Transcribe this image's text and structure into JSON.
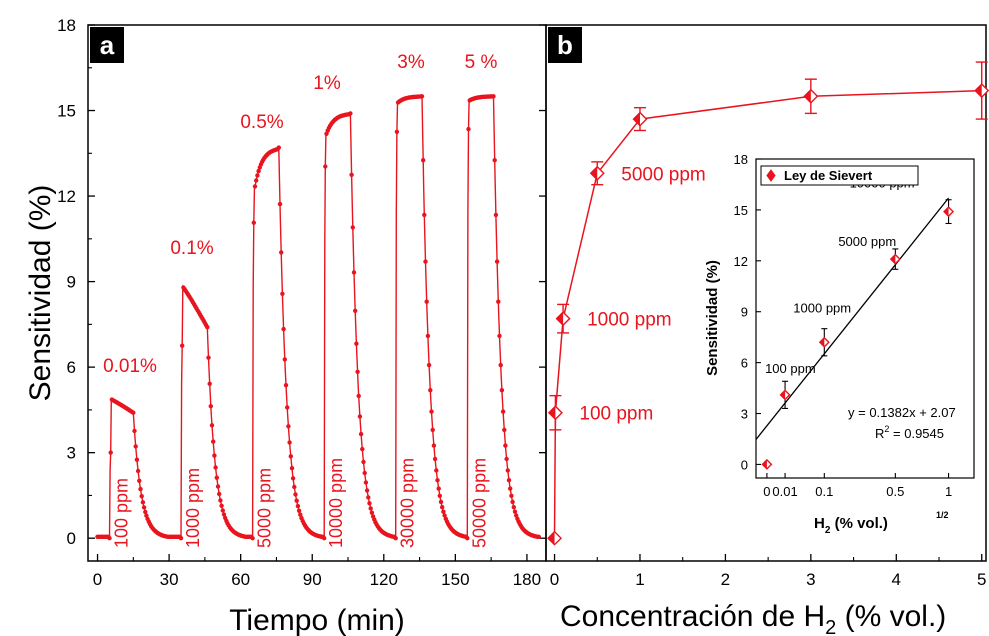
{
  "chart_data": [
    {
      "panel": "a",
      "type": "line",
      "xlabel": "Tiempo (min)",
      "ylabel": "Sensitividad (%)",
      "xlim": [
        -4,
        188
      ],
      "ylim": [
        -0.8,
        18
      ],
      "x_ticks": [
        0,
        30,
        60,
        90,
        120,
        150,
        180
      ],
      "y_ticks": [
        0,
        3,
        6,
        9,
        12,
        15,
        18
      ],
      "color": "#e8141e",
      "pulses": [
        {
          "on": 5,
          "off": 15,
          "peak": 4.9,
          "end": 4.4,
          "rise": 3.2,
          "step_label": "0.01%",
          "conc_label": "100 ppm"
        },
        {
          "on": 35,
          "off": 46,
          "peak": 8.9,
          "end": 7.4,
          "rise": 7.2,
          "step_label": "0.1%",
          "conc_label": "1000 ppm"
        },
        {
          "on": 65,
          "off": 76,
          "peak": 11.8,
          "end": 13.7,
          "rise": 11.8,
          "step_label": "0.5%",
          "conc_label": "5000 ppm"
        },
        {
          "on": 95,
          "off": 106,
          "peak": 13.9,
          "end": 14.9,
          "rise": 13.9,
          "step_label": "1%",
          "conc_label": "10000 ppm"
        },
        {
          "on": 125,
          "off": 136,
          "peak": 15.2,
          "end": 15.5,
          "rise": 15.2,
          "step_label": "3%",
          "conc_label": "30000 ppm"
        },
        {
          "on": 155,
          "off": 166,
          "peak": 15.3,
          "end": 15.5,
          "rise": 15.3,
          "step_label": "5 %",
          "conc_label": "50000 ppm"
        }
      ]
    },
    {
      "panel": "b",
      "type": "line",
      "xlabel_pre": "Concentración de H",
      "xlabel_sub": "2",
      "xlabel_post": " (% vol.)",
      "xlim": [
        -0.1,
        5.05
      ],
      "ylim": [
        -0.8,
        18
      ],
      "x_ticks": [
        0,
        1,
        2,
        3,
        4,
        5
      ],
      "color": "#e8141e",
      "x": [
        0,
        0.01,
        0.1,
        0.5,
        1,
        3,
        5
      ],
      "y": [
        0,
        4.4,
        7.7,
        12.8,
        14.7,
        15.5,
        15.7
      ],
      "err": [
        0,
        0.6,
        0.5,
        0.4,
        0.4,
        0.6,
        1.0
      ],
      "annotations": [
        {
          "x": 0.01,
          "y": 4.4,
          "text": "100 ppm"
        },
        {
          "x": 0.1,
          "y": 7.7,
          "text": "1000 ppm"
        },
        {
          "x": 0.5,
          "y": 12.8,
          "text": "5000 ppm"
        }
      ]
    },
    {
      "panel": "b-inset",
      "type": "scatter",
      "xlabel_pre": "H",
      "xlabel_sub": "2",
      "xlabel_post": " (% vol.)",
      "xlabel_sup": "1/2",
      "ylabel": "Sensitividad (%)",
      "x_tick_labels": [
        "0",
        "0.01",
        "0.1",
        "0.5",
        "1"
      ],
      "x_tick_values": [
        0,
        0.1,
        0.316,
        0.707,
        1
      ],
      "y_ticks": [
        0,
        3,
        6,
        9,
        12,
        15,
        18
      ],
      "xlim": [
        -0.06,
        1.14
      ],
      "ylim": [
        -0.8,
        18
      ],
      "x": [
        0,
        0.1,
        0.316,
        0.707,
        1
      ],
      "y": [
        0,
        4.1,
        7.2,
        12.1,
        14.9
      ],
      "err": [
        0,
        0.8,
        0.8,
        0.6,
        0.7
      ],
      "point_labels": [
        "",
        "100 ppm",
        "1000 ppm",
        "5000 ppm",
        "10000 ppm"
      ],
      "legend": "Ley de Sievert",
      "fit": {
        "slope": 0.1382,
        "intercept": 2.07,
        "equation": "y = 0.1382x + 2.07",
        "r2_pre": "R",
        "r2_sup": "2",
        "r2_post": " = 0.9545"
      }
    }
  ]
}
